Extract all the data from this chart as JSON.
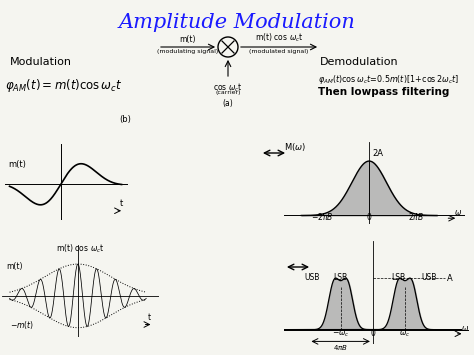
{
  "title": "Amplitude Modulation",
  "title_color": "#1a1aff",
  "bg_color": "#f5f5f0",
  "gray_fill": "#b0b0b0",
  "modulation_label": "Modulation",
  "demodulation_label": "Demodulation",
  "lowpass_label": "Then lowpass filtering",
  "b_label": "(b)",
  "a_label": "(a)"
}
